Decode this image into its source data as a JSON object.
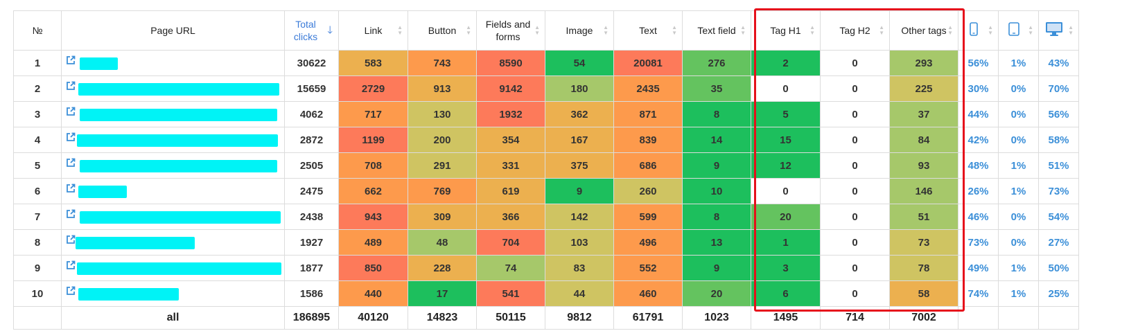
{
  "headers": {
    "num": "№",
    "url": "Page URL",
    "total": "Total clicks",
    "link": "Link",
    "button": "Button",
    "fields": "Fields and forms",
    "image": "Image",
    "text": "Text",
    "text_field": "Text field",
    "h1": "Tag H1",
    "h2": "Tag H2",
    "other": "Other tags"
  },
  "device_icons": [
    "mobile-icon",
    "tablet-icon",
    "desktop-icon"
  ],
  "colors": {
    "accent_blue": "#3b7bd8",
    "highlight_red": "#e60f1b",
    "redaction": "#00f3f6",
    "heat_dark_green": "#1dbf5d",
    "heat_green": "#64c35f",
    "heat_light_green": "#a6c86a",
    "heat_olive": "#cfc462",
    "heat_amber": "#ecb04f",
    "heat_orange": "#fd9a4c",
    "heat_red": "#fd7a5a"
  },
  "rows": [
    {
      "n": "1",
      "total": "30622",
      "link": "583",
      "button": "743",
      "fields": "8590",
      "image": "54",
      "text": "20081",
      "tf": "276",
      "h1": "2",
      "h2": "0",
      "other": "293",
      "mob": "56%",
      "tab": "1%",
      "desk": "43%"
    },
    {
      "n": "2",
      "total": "15659",
      "link": "2729",
      "button": "913",
      "fields": "9142",
      "image": "180",
      "text": "2435",
      "tf": "35",
      "h1": "0",
      "h2": "0",
      "other": "225",
      "mob": "30%",
      "tab": "0%",
      "desk": "70%"
    },
    {
      "n": "3",
      "total": "4062",
      "link": "717",
      "button": "130",
      "fields": "1932",
      "image": "362",
      "text": "871",
      "tf": "8",
      "h1": "5",
      "h2": "0",
      "other": "37",
      "mob": "44%",
      "tab": "0%",
      "desk": "56%"
    },
    {
      "n": "4",
      "total": "2872",
      "link": "1199",
      "button": "200",
      "fields": "354",
      "image": "167",
      "text": "839",
      "tf": "14",
      "h1": "15",
      "h2": "0",
      "other": "84",
      "mob": "42%",
      "tab": "0%",
      "desk": "58%"
    },
    {
      "n": "5",
      "total": "2505",
      "link": "708",
      "button": "291",
      "fields": "331",
      "image": "375",
      "text": "686",
      "tf": "9",
      "h1": "12",
      "h2": "0",
      "other": "93",
      "mob": "48%",
      "tab": "1%",
      "desk": "51%"
    },
    {
      "n": "6",
      "total": "2475",
      "link": "662",
      "button": "769",
      "fields": "619",
      "image": "9",
      "text": "260",
      "tf": "10",
      "h1": "0",
      "h2": "0",
      "other": "146",
      "mob": "26%",
      "tab": "1%",
      "desk": "73%"
    },
    {
      "n": "7",
      "total": "2438",
      "link": "943",
      "button": "309",
      "fields": "366",
      "image": "142",
      "text": "599",
      "tf": "8",
      "h1": "20",
      "h2": "0",
      "other": "51",
      "mob": "46%",
      "tab": "0%",
      "desk": "54%"
    },
    {
      "n": "8",
      "total": "1927",
      "link": "489",
      "button": "48",
      "fields": "704",
      "image": "103",
      "text": "496",
      "tf": "13",
      "h1": "1",
      "h2": "0",
      "other": "73",
      "mob": "73%",
      "tab": "0%",
      "desk": "27%"
    },
    {
      "n": "9",
      "total": "1877",
      "link": "850",
      "button": "228",
      "fields": "74",
      "image": "83",
      "text": "552",
      "tf": "9",
      "h1": "3",
      "h2": "0",
      "other": "78",
      "mob": "49%",
      "tab": "1%",
      "desk": "50%"
    },
    {
      "n": "10",
      "total": "1586",
      "link": "440",
      "button": "17",
      "fields": "541",
      "image": "44",
      "text": "460",
      "tf": "20",
      "h1": "6",
      "h2": "0",
      "other": "58",
      "mob": "74%",
      "tab": "1%",
      "desk": "25%"
    }
  ],
  "cell_colors": [
    {
      "link": "heat_amber",
      "button": "heat_orange",
      "fields": "heat_red",
      "image": "heat_dark_green",
      "text": "heat_red",
      "tf": "heat_green",
      "h1": "heat_dark_green",
      "h2": "",
      "other": "heat_light_green"
    },
    {
      "link": "heat_red",
      "button": "heat_amber",
      "fields": "heat_red",
      "image": "heat_light_green",
      "text": "heat_orange",
      "tf": "heat_green",
      "h1": "",
      "h2": "",
      "other": "heat_olive"
    },
    {
      "link": "heat_orange",
      "button": "heat_olive",
      "fields": "heat_red",
      "image": "heat_amber",
      "text": "heat_orange",
      "tf": "heat_dark_green",
      "h1": "heat_dark_green",
      "h2": "",
      "other": "heat_light_green"
    },
    {
      "link": "heat_red",
      "button": "heat_olive",
      "fields": "heat_amber",
      "image": "heat_amber",
      "text": "heat_orange",
      "tf": "heat_dark_green",
      "h1": "heat_dark_green",
      "h2": "",
      "other": "heat_light_green"
    },
    {
      "link": "heat_orange",
      "button": "heat_olive",
      "fields": "heat_amber",
      "image": "heat_amber",
      "text": "heat_orange",
      "tf": "heat_dark_green",
      "h1": "heat_dark_green",
      "h2": "",
      "other": "heat_light_green"
    },
    {
      "link": "heat_orange",
      "button": "heat_orange",
      "fields": "heat_amber",
      "image": "heat_dark_green",
      "text": "heat_olive",
      "tf": "heat_dark_green",
      "h1": "",
      "h2": "",
      "other": "heat_light_green"
    },
    {
      "link": "heat_red",
      "button": "heat_amber",
      "fields": "heat_amber",
      "image": "heat_olive",
      "text": "heat_orange",
      "tf": "heat_dark_green",
      "h1": "heat_green",
      "h2": "",
      "other": "heat_light_green"
    },
    {
      "link": "heat_orange",
      "button": "heat_light_green",
      "fields": "heat_red",
      "image": "heat_olive",
      "text": "heat_orange",
      "tf": "heat_dark_green",
      "h1": "heat_dark_green",
      "h2": "",
      "other": "heat_olive"
    },
    {
      "link": "heat_red",
      "button": "heat_amber",
      "fields": "heat_light_green",
      "image": "heat_olive",
      "text": "heat_orange",
      "tf": "heat_dark_green",
      "h1": "heat_dark_green",
      "h2": "",
      "other": "heat_olive"
    },
    {
      "link": "heat_orange",
      "button": "heat_dark_green",
      "fields": "heat_red",
      "image": "heat_olive",
      "text": "heat_orange",
      "tf": "heat_green",
      "h1": "heat_dark_green",
      "h2": "",
      "other": "heat_amber"
    }
  ],
  "totals": {
    "label": "all",
    "total": "186895",
    "link": "40120",
    "button": "14823",
    "fields": "50115",
    "image": "9812",
    "text": "61791",
    "tf": "1023",
    "h1": "1495",
    "h2": "714",
    "other": "7002"
  }
}
